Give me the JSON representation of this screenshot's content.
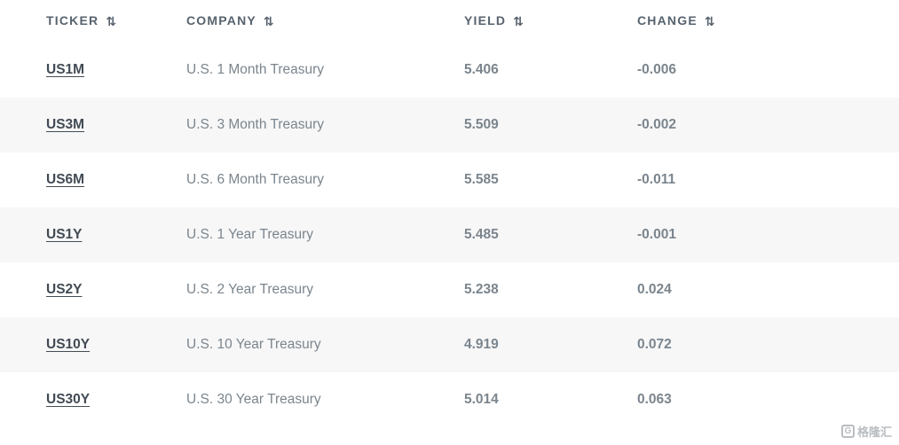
{
  "colors": {
    "stripe_row": "#f7f7f8",
    "header_text": "#57636e",
    "ticker_link": "#424b54",
    "body_text": "#7d868e",
    "number_text": "#565f67",
    "watermark": "#b9bdc1"
  },
  "table": {
    "headers": [
      {
        "label": "TICKER"
      },
      {
        "label": "COMPANY"
      },
      {
        "label": "YIELD"
      },
      {
        "label": "CHANGE"
      }
    ],
    "sort_icon_glyph": "⇅",
    "rows": [
      {
        "ticker": "US1M",
        "company": "U.S. 1 Month Treasury",
        "yield": "5.406",
        "change": "-0.006"
      },
      {
        "ticker": "US3M",
        "company": "U.S. 3 Month Treasury",
        "yield": "5.509",
        "change": "-0.002"
      },
      {
        "ticker": "US6M",
        "company": "U.S. 6 Month Treasury",
        "yield": "5.585",
        "change": "-0.011"
      },
      {
        "ticker": "US1Y",
        "company": "U.S. 1 Year Treasury",
        "yield": "5.485",
        "change": "-0.001"
      },
      {
        "ticker": "US2Y",
        "company": "U.S. 2 Year Treasury",
        "yield": "5.238",
        "change": "0.024"
      },
      {
        "ticker": "US10Y",
        "company": "U.S. 10 Year Treasury",
        "yield": "4.919",
        "change": "0.072"
      },
      {
        "ticker": "US30Y",
        "company": "U.S. 30 Year Treasury",
        "yield": "5.014",
        "change": "0.063"
      }
    ]
  },
  "watermark": {
    "icon_letter": "G",
    "text": "格隆汇"
  }
}
